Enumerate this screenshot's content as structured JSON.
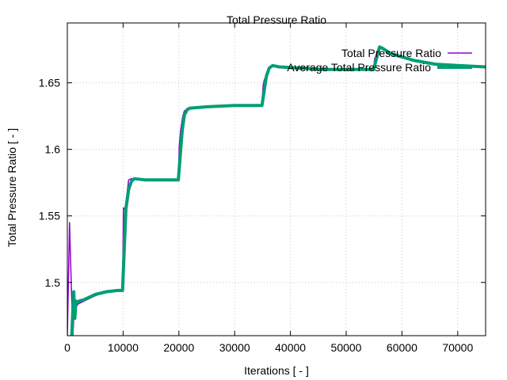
{
  "chart_data": {
    "type": "line",
    "title": "Total Pressure Ratio",
    "xlabel": "Iterations [ - ]",
    "ylabel": "Total Pressure Ratio [ - ]",
    "xlim": [
      0,
      75000
    ],
    "ylim": [
      1.46,
      1.695
    ],
    "xticks": [
      0,
      10000,
      20000,
      30000,
      40000,
      50000,
      60000,
      70000
    ],
    "xtick_labels": [
      "0",
      "10000",
      "20000",
      "30000",
      "40000",
      "50000",
      "60000",
      "70000"
    ],
    "yticks": [
      1.5,
      1.55,
      1.6,
      1.65
    ],
    "ytick_labels": [
      "1.5",
      "1.55",
      "1.6",
      "1.65"
    ],
    "grid": true,
    "legend_position": "top-right",
    "series": [
      {
        "name": "Total Pressure Ratio",
        "color": "#9400d3",
        "x": [
          0,
          400,
          700,
          1000,
          1300,
          1600,
          2000,
          3000,
          5000,
          7000,
          9000,
          9900,
          10050,
          10300,
          10600,
          11000,
          11500,
          12000,
          14000,
          16000,
          18000,
          19900,
          20050,
          20300,
          20700,
          21000,
          22000,
          25000,
          30000,
          34900,
          35100,
          35300,
          35700,
          36200,
          36600,
          38000,
          42000,
          46000,
          50000,
          54900,
          55100,
          55400,
          55700,
          56100,
          56500,
          58000,
          62000,
          66000,
          70000,
          75000
        ],
        "y": [
          1.46,
          1.545,
          1.5,
          1.46,
          1.485,
          1.482,
          1.484,
          1.486,
          1.49,
          1.493,
          1.494,
          1.494,
          1.556,
          1.555,
          1.563,
          1.577,
          1.578,
          1.578,
          1.577,
          1.577,
          1.577,
          1.577,
          1.602,
          1.614,
          1.625,
          1.629,
          1.631,
          1.632,
          1.633,
          1.633,
          1.648,
          1.652,
          1.656,
          1.661,
          1.663,
          1.662,
          1.661,
          1.66,
          1.66,
          1.66,
          1.668,
          1.671,
          1.675,
          1.677,
          1.676,
          1.672,
          1.667,
          1.664,
          1.663,
          1.662
        ]
      },
      {
        "name": "Average Total Pressure Ratio",
        "color": "#009e73",
        "x": [
          800,
          1000,
          1150,
          1350,
          1550,
          1800,
          2100,
          3000,
          5000,
          7000,
          9000,
          9900,
          10500,
          11000,
          11500,
          12000,
          14000,
          16000,
          18000,
          19900,
          20600,
          21000,
          21500,
          22000,
          25000,
          30000,
          34900,
          35700,
          36200,
          36800,
          38000,
          42000,
          46000,
          50000,
          54900,
          56000,
          56500,
          58000,
          62000,
          66000,
          70000,
          75000
        ],
        "y": [
          1.46,
          1.48,
          1.493,
          1.473,
          1.486,
          1.485,
          1.486,
          1.487,
          1.491,
          1.493,
          1.494,
          1.494,
          1.555,
          1.57,
          1.576,
          1.578,
          1.577,
          1.577,
          1.577,
          1.577,
          1.614,
          1.626,
          1.63,
          1.631,
          1.632,
          1.633,
          1.633,
          1.655,
          1.661,
          1.663,
          1.662,
          1.661,
          1.66,
          1.66,
          1.66,
          1.677,
          1.676,
          1.672,
          1.667,
          1.664,
          1.663,
          1.662
        ]
      }
    ]
  }
}
